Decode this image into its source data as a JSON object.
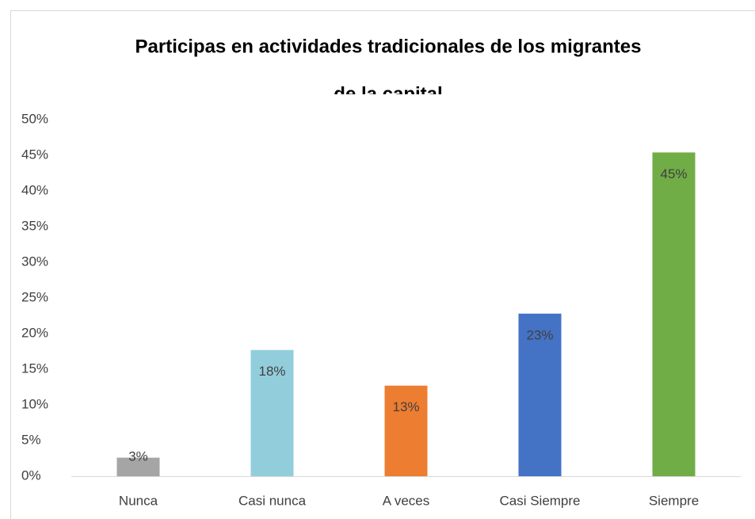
{
  "chart_data": {
    "type": "bar",
    "title": [
      "Participas en actividades tradicionales de los migrantes",
      "de la capital"
    ],
    "categories": [
      "Nunca",
      "Casi nunca",
      "A veces",
      "Casi Siempre",
      "Siempre"
    ],
    "values": [
      2.6,
      17.7,
      12.7,
      22.8,
      45.4
    ],
    "value_labels": [
      "3%",
      "18%",
      "13%",
      "23%",
      "45%"
    ],
    "colors": [
      "#a5a5a5",
      "#92cddc",
      "#ed7d31",
      "#4472c4",
      "#70ad47"
    ],
    "ylim": [
      0,
      50
    ],
    "yticks": [
      {
        "value": 0,
        "label": "0%"
      },
      {
        "value": 5,
        "label": "5%"
      },
      {
        "value": 10,
        "label": "10%"
      },
      {
        "value": 15,
        "label": "15%"
      },
      {
        "value": 20,
        "label": "20%"
      },
      {
        "value": 25,
        "label": "25%"
      },
      {
        "value": 30,
        "label": "30%"
      },
      {
        "value": 35,
        "label": "35%"
      },
      {
        "value": 40,
        "label": "40%"
      },
      {
        "value": 45,
        "label": "45%"
      },
      {
        "value": 50,
        "label": "50%"
      }
    ],
    "grid": false
  }
}
